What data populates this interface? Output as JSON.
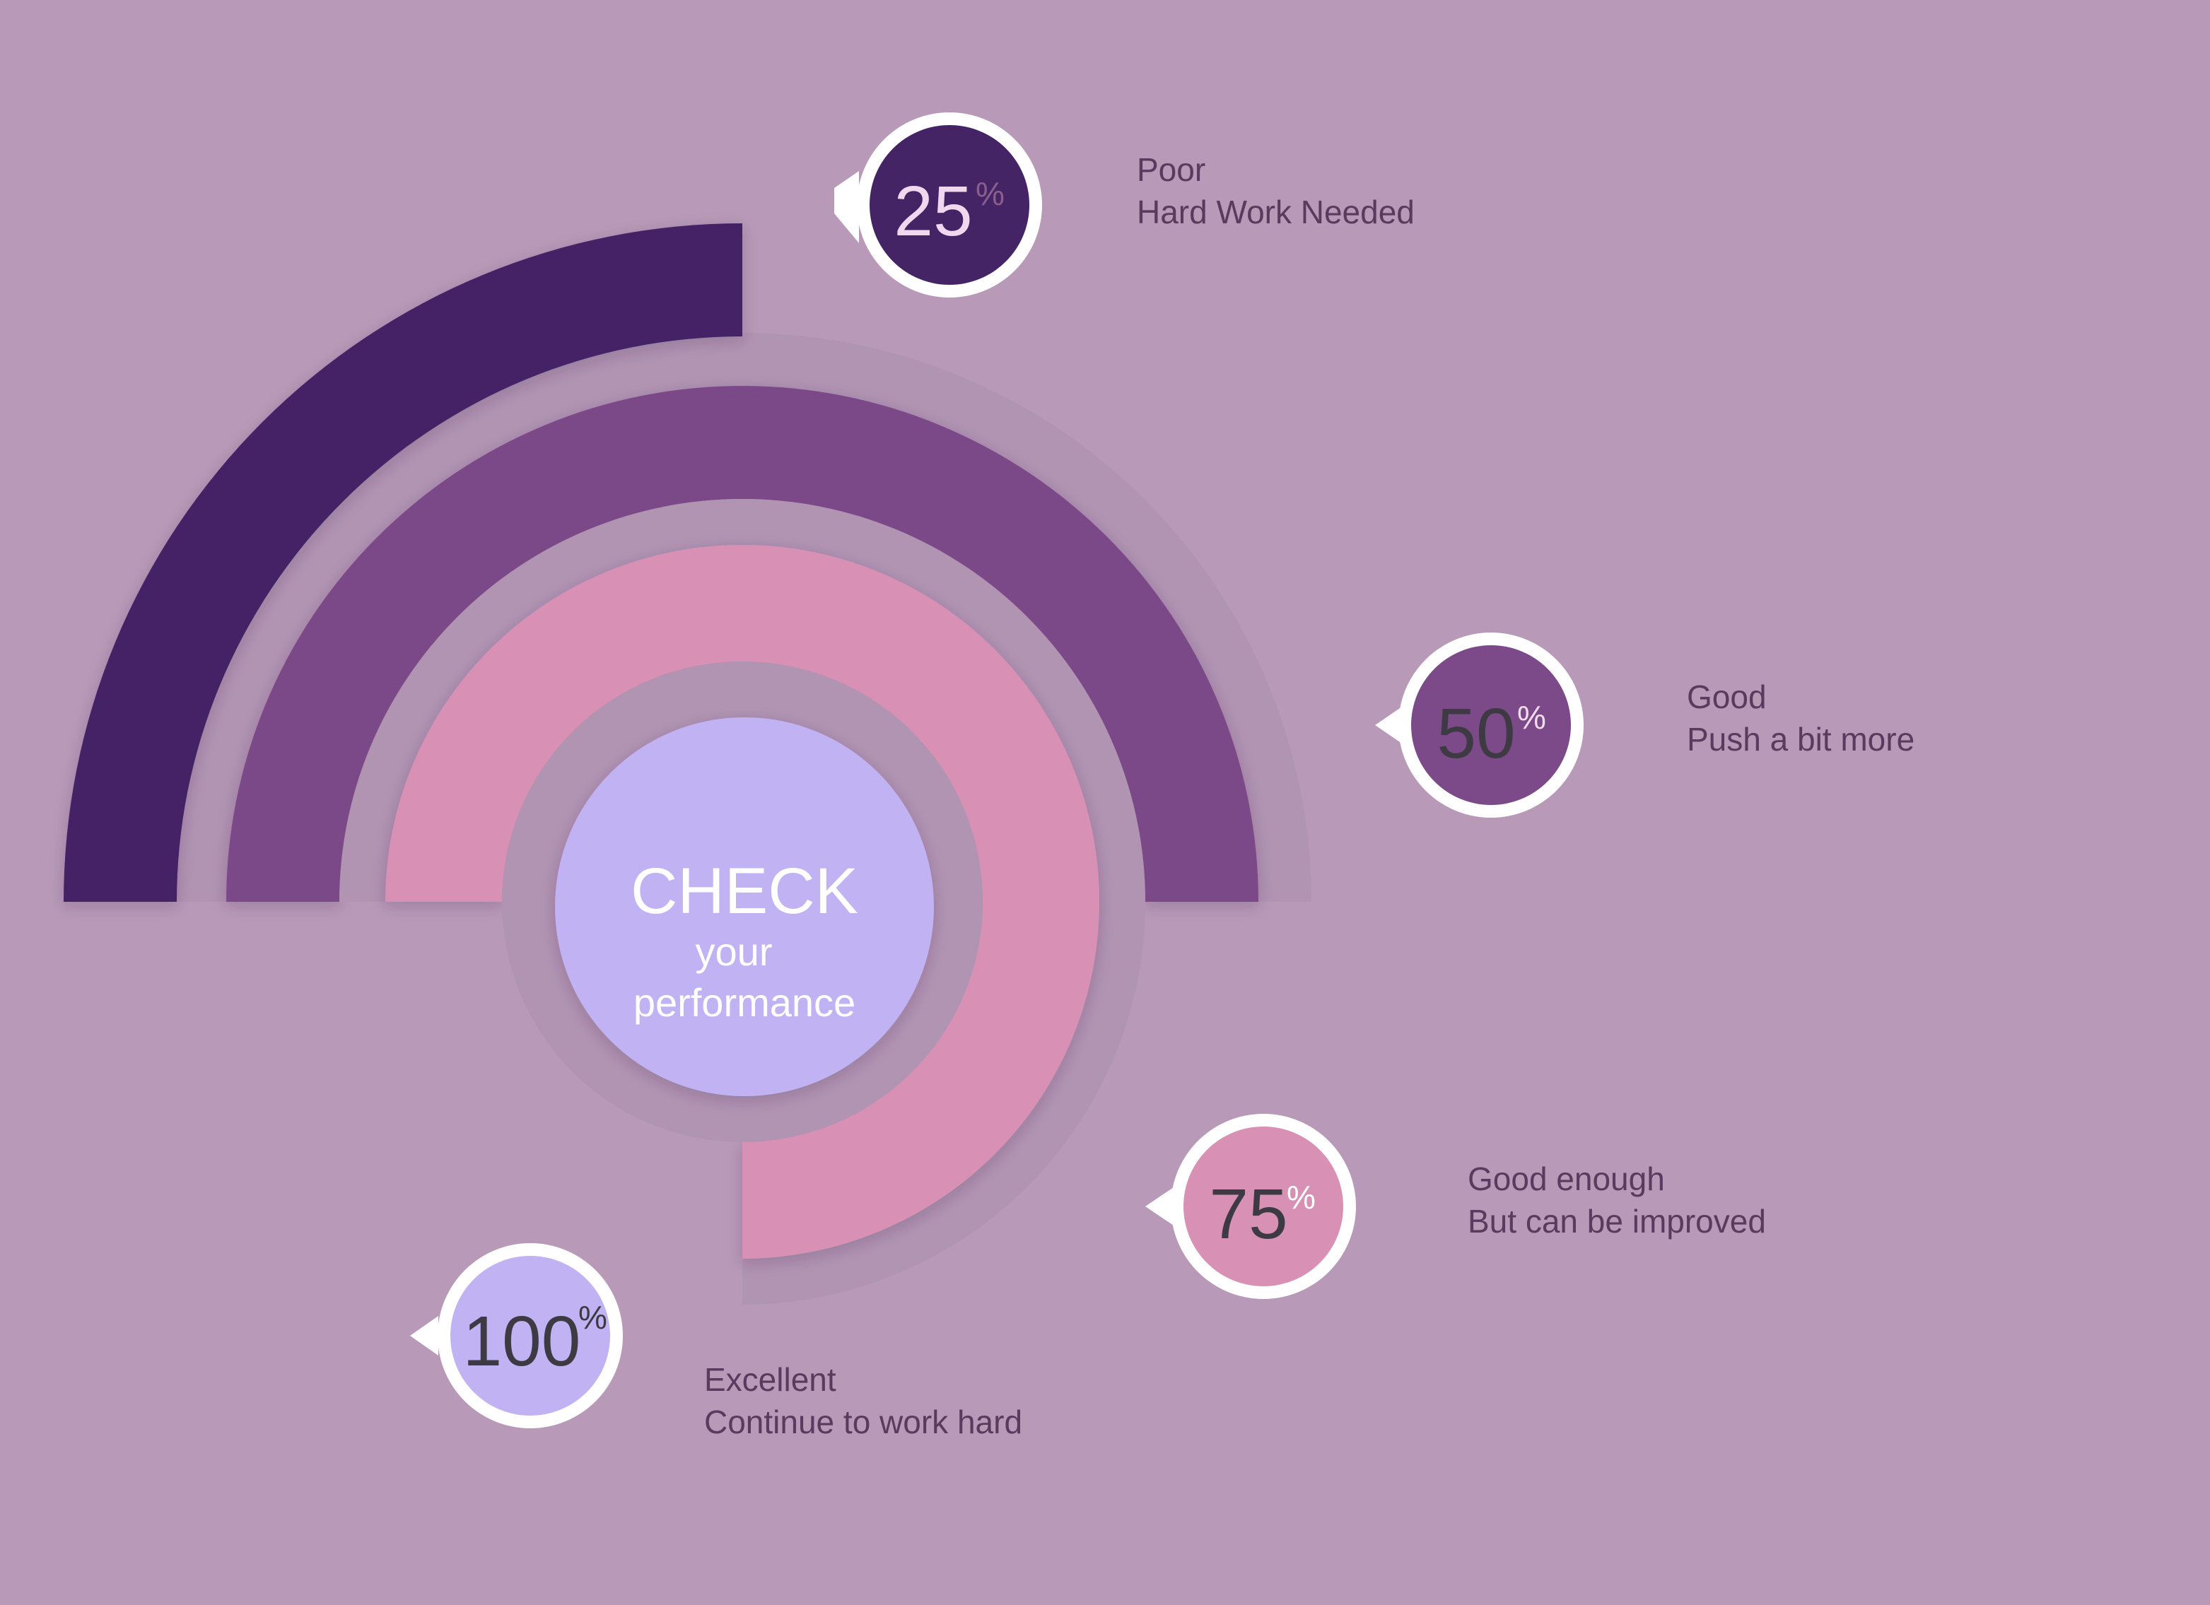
{
  "colors": {
    "background": "#b899b7",
    "ring_track": "#b193b2",
    "level_25": "#452465",
    "level_50": "#7c4a88",
    "level_75": "#d891b5",
    "level_100": "#c1b3f3",
    "label_text": "#5a3a5e"
  },
  "center": {
    "line1": "CHECK",
    "line2": "your",
    "line3": "performance"
  },
  "levels": [
    {
      "value": "25",
      "unit": "%",
      "fraction": 0.25,
      "title": "Poor",
      "subtitle": "Hard Work Needed"
    },
    {
      "value": "50",
      "unit": "%",
      "fraction": 0.5,
      "title": "Good",
      "subtitle": "Push a bit more"
    },
    {
      "value": "75",
      "unit": "%",
      "fraction": 0.75,
      "title": "Good enough",
      "subtitle": "But can be improved"
    },
    {
      "value": "100",
      "unit": "%",
      "fraction": 1.0,
      "title": "Excellent",
      "subtitle": "Continue to work hard"
    }
  ]
}
